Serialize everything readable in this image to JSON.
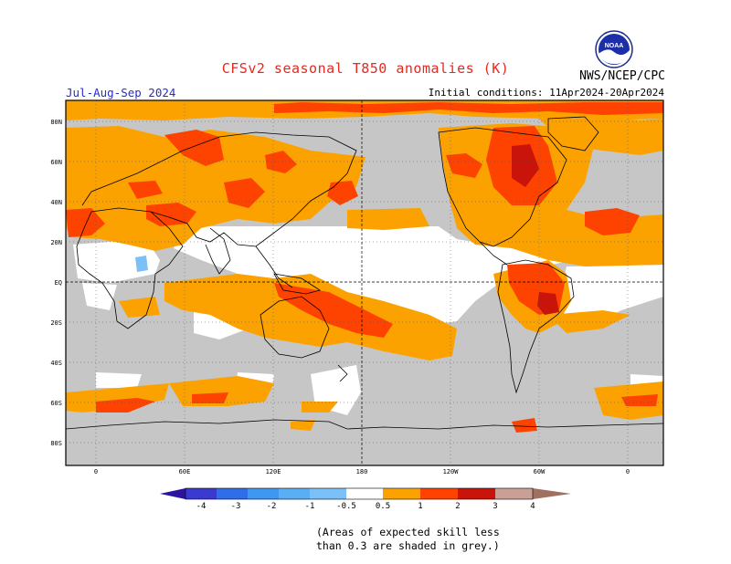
{
  "header": {
    "title": "CFSv2 seasonal T850 anomalies (K)",
    "season": "Jul-Aug-Sep 2024",
    "agency": "NWS/NCEP/CPC",
    "initial_conditions": "Initial conditions: 11Apr2024-20Apr2024",
    "logo_text": "NOAA"
  },
  "axes": {
    "lat_labels": [
      "80N",
      "60N",
      "40N",
      "20N",
      "EQ",
      "20S",
      "40S",
      "60S",
      "80S"
    ],
    "lon_labels": [
      "0",
      "60E",
      "120E",
      "180",
      "120W",
      "60W",
      "0"
    ]
  },
  "colorbar": {
    "labels": [
      "-4",
      "-3",
      "-2",
      "-1",
      "-0.5",
      "0.5",
      "1",
      "2",
      "3",
      "4"
    ],
    "colors": [
      "#2d14a0",
      "#3a3ad0",
      "#2f6ee8",
      "#3e98f0",
      "#7cc0f8",
      "#ffffff",
      "#fba200",
      "#fe4200",
      "#c8140a",
      "#9a0808",
      "#c8a096",
      "#a07060"
    ]
  },
  "legend_colors": {
    "grey_low_skill": "#c6c6c6",
    "neutral": "#ffffff",
    "warm_05_1": "#fba200",
    "warm_1_2": "#fe4200",
    "warm_2_3": "#c8140a",
    "warm_3_4": "#9a0808",
    "cool_-1_-05": "#7cc0f8"
  },
  "footnote": {
    "line1": "(Areas of expected skill less",
    "line2": "than 0.3 are shaded in grey.)"
  }
}
